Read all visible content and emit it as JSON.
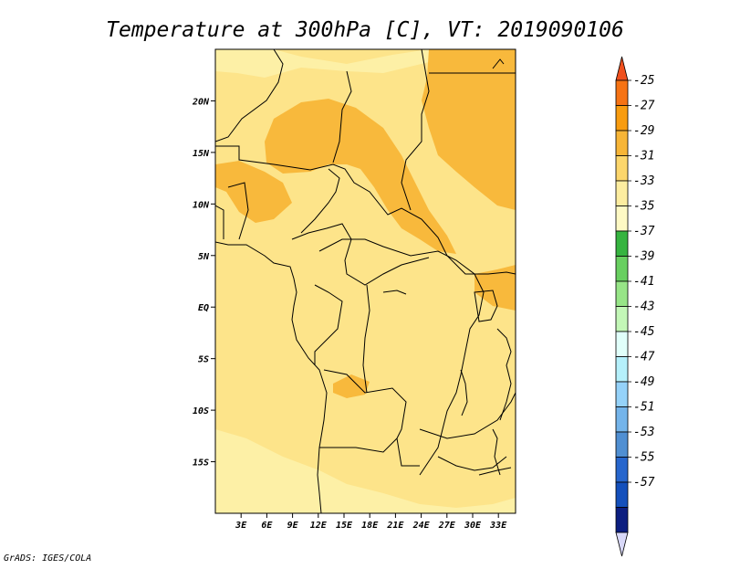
{
  "title": "Temperature at 300hPa [C], VT: 2019090106",
  "credit": "GrADS: IGES/COLA",
  "map": {
    "lon_range": [
      0,
      35
    ],
    "lat_range": [
      -20,
      25
    ],
    "lon_ticks": [
      {
        "value": 3,
        "label": "3E"
      },
      {
        "value": 6,
        "label": "6E"
      },
      {
        "value": 9,
        "label": "9E"
      },
      {
        "value": 12,
        "label": "12E"
      },
      {
        "value": 15,
        "label": "15E"
      },
      {
        "value": 18,
        "label": "18E"
      },
      {
        "value": 21,
        "label": "21E"
      },
      {
        "value": 24,
        "label": "24E"
      },
      {
        "value": 27,
        "label": "27E"
      },
      {
        "value": 30,
        "label": "30E"
      },
      {
        "value": 33,
        "label": "33E"
      }
    ],
    "lat_ticks": [
      {
        "value": 20,
        "label": "20N"
      },
      {
        "value": 15,
        "label": "15N"
      },
      {
        "value": 10,
        "label": "10N"
      },
      {
        "value": 5,
        "label": "5N"
      },
      {
        "value": 0,
        "label": "EQ"
      },
      {
        "value": -5,
        "label": "5S"
      },
      {
        "value": -10,
        "label": "10S"
      },
      {
        "value": -15,
        "label": "15S"
      }
    ],
    "background_color": "#fde48a"
  },
  "colorbar": {
    "labels": [
      "-25",
      "-27",
      "-29",
      "-31",
      "-33",
      "-35",
      "-37",
      "-39",
      "-41",
      "-43",
      "-45",
      "-47",
      "-49",
      "-51",
      "-53",
      "-55",
      "-57"
    ],
    "top_arrow_color": "#f0501e",
    "bottom_arrow_color": "#d8d8f8",
    "colors": [
      "#f67314",
      "#f89c10",
      "#f7b537",
      "#fcd66c",
      "#fdeda0",
      "#fef9c4",
      "#36b440",
      "#68cf60",
      "#97e587",
      "#c3f7b7",
      "#e1fffa",
      "#b5f0fb",
      "#95d2f9",
      "#74b4ea",
      "#508fd2",
      "#2766cd",
      "#1450bc",
      "#0c1e80"
    ]
  }
}
